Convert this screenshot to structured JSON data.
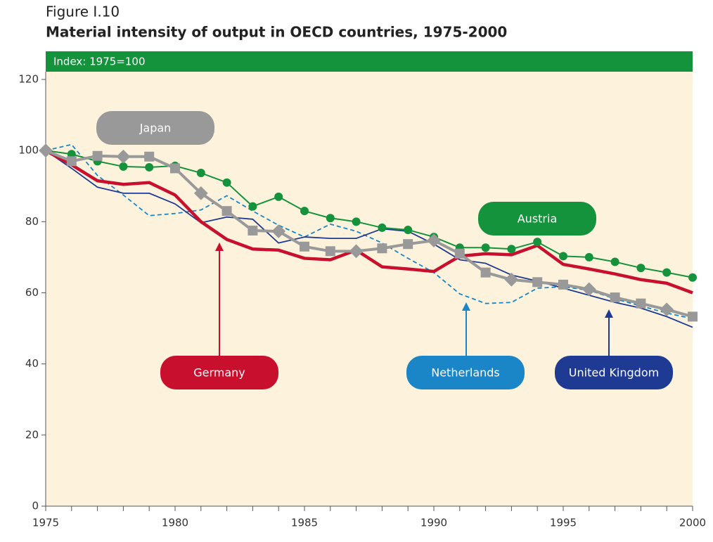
{
  "chart_data": {
    "type": "line",
    "figure_label": "Figure I.10",
    "title": "Material intensity of output in OECD countries, 1975-2000",
    "subtitle": "Index: 1975=100",
    "x": [
      1975,
      1976,
      1977,
      1978,
      1979,
      1980,
      1981,
      1982,
      1983,
      1984,
      1985,
      1986,
      1987,
      1988,
      1989,
      1990,
      1991,
      1992,
      1993,
      1994,
      1995,
      1996,
      1997,
      1998,
      1999,
      2000
    ],
    "xlim": [
      1975,
      2000
    ],
    "xticks": [
      1975,
      1980,
      1985,
      1990,
      1995,
      2000
    ],
    "ylim": [
      0,
      120
    ],
    "yticks": [
      0,
      20,
      40,
      60,
      80,
      100,
      120
    ],
    "grid": false,
    "series": [
      {
        "name": "Austria",
        "color": "#15923c",
        "values": [
          100,
          99,
          97,
          95.5,
          95.3,
          95.7,
          93.7,
          91,
          84.3,
          87,
          83,
          81,
          80,
          78.3,
          77.7,
          75.7,
          72.7,
          72.7,
          72.3,
          74.3,
          70.3,
          70,
          68.7,
          67,
          65.7,
          64.3
        ]
      },
      {
        "name": "Germany",
        "color": "#c8102e",
        "values": [
          100,
          96,
          91.5,
          90.5,
          91,
          87.5,
          80,
          75,
          72.3,
          72,
          69.7,
          69.3,
          72,
          67.3,
          66.7,
          66,
          70.3,
          71,
          70.7,
          73.3,
          68,
          66.7,
          65.3,
          63.7,
          62.7,
          60
        ]
      },
      {
        "name": "Japan",
        "color": "#999999",
        "values": [
          100,
          97,
          98.5,
          98.3,
          98.3,
          95,
          88,
          83,
          77.5,
          77.3,
          73,
          71.7,
          71.7,
          72.5,
          73.7,
          74.7,
          71,
          65.7,
          63.7,
          63,
          62.3,
          61,
          58.7,
          57,
          55.3,
          53.3
        ]
      },
      {
        "name": "Netherlands",
        "color": "#1a85c7",
        "values": [
          100,
          101.7,
          93,
          87.5,
          81.7,
          82.3,
          83.3,
          87.3,
          83,
          79,
          75.7,
          79.3,
          77.3,
          74,
          69.7,
          65.7,
          59.7,
          57,
          57.3,
          61.3,
          61.7,
          60.7,
          58.3,
          56.3,
          54.3,
          52.7
        ]
      },
      {
        "name": "United Kingdom",
        "color": "#1f3a93",
        "values": [
          100,
          95,
          89.7,
          88,
          88,
          85,
          79.7,
          81.3,
          80.7,
          74,
          75.7,
          75.3,
          75.3,
          78,
          77.3,
          73.7,
          69.3,
          68.3,
          65,
          63.3,
          61.3,
          59.3,
          57.3,
          55.7,
          53.3,
          50.3
        ]
      }
    ]
  }
}
